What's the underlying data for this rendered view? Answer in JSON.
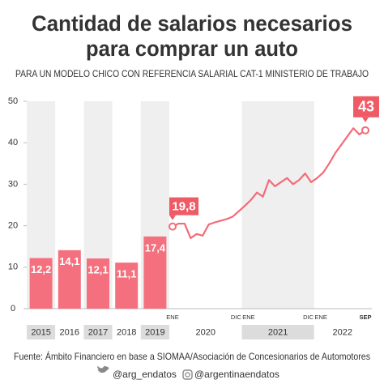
{
  "chart_data": {
    "type": "combo",
    "title": [
      "Cantidad de salarios necesarios",
      "para comprar un auto"
    ],
    "subtitle": "PARA UN MODELO CHICO CON REFERENCIA SALARIAL CAT-1 MINISTERIO DE TRABAJO",
    "ylim": [
      0,
      50
    ],
    "yticks": [
      0,
      10,
      20,
      30,
      40,
      50
    ],
    "bars": {
      "categories": [
        "2015",
        "2016",
        "2017",
        "2018",
        "2019"
      ],
      "values": [
        12.2,
        14.1,
        12.1,
        11.1,
        17.4
      ],
      "value_labels": [
        "12,2",
        "14,1",
        "12,1",
        "11,1",
        "17,4"
      ],
      "color": "#f4707e"
    },
    "line": {
      "categories": [
        "ENE",
        null,
        null,
        null,
        null,
        null,
        null,
        null,
        null,
        null,
        null,
        "DIC",
        "ENE",
        null,
        null,
        null,
        null,
        null,
        null,
        null,
        null,
        null,
        null,
        "DIC",
        "ENE",
        null,
        null,
        null,
        null,
        null,
        null,
        null,
        "SEP"
      ],
      "years": [
        "2020",
        "2021",
        "2022"
      ],
      "values": [
        19.8,
        20.5,
        20.5,
        17,
        18,
        17.6,
        20.3,
        20.8,
        21.2,
        21.6,
        22.2,
        23.5,
        24.8,
        26.2,
        28,
        27,
        31,
        29.5,
        30.5,
        31.5,
        30,
        31,
        32.6,
        30.5,
        31.5,
        32.8,
        35,
        37.5,
        39.5,
        41.5,
        43.5,
        42,
        43
      ],
      "value_labels": [
        "19,8",
        null,
        null,
        null,
        null,
        null,
        null,
        null,
        null,
        null,
        null,
        null,
        null,
        null,
        null,
        null,
        null,
        null,
        null,
        null,
        null,
        null,
        null,
        null,
        null,
        null,
        null,
        null,
        null,
        null,
        null,
        null,
        "43"
      ],
      "color": "#f46a77"
    },
    "source": "Fuente: Ámbito Financiero en base a SIOMAA/Asociación de Concesionarios de Automotores"
  },
  "footer": {
    "twitter": "@arg_endatos",
    "instagram": "@argentinaendatos"
  }
}
